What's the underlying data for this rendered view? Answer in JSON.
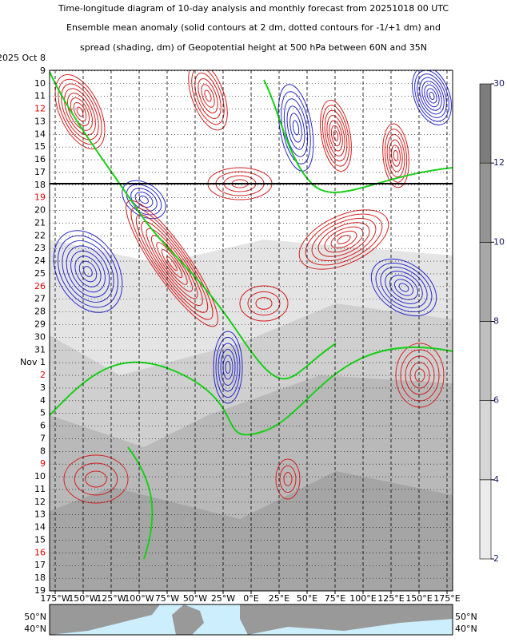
{
  "chart_data": {
    "type": "hovmoller",
    "title_lines": [
      "Time-longitude diagram of 10-day analysis and monthly forecast from 20251018 00 UTC",
      "Ensemble mean anomaly (solid contours at 2 dm, dotted contours for -1/+1 dm) and",
      "spread (shading, dm) of Geopotential height at 500 hPa between 60N and 35N"
    ],
    "categories": [
      "2025 Oct  8",
      "9",
      "10",
      "11",
      "12",
      "13",
      "14",
      "15",
      "16",
      "17",
      "18",
      "19",
      "20",
      "21",
      "22",
      "23",
      "24",
      "25",
      "26",
      "27",
      "28",
      "29",
      "30",
      "31",
      "Nov 1",
      "2",
      "3",
      "4",
      "5",
      "6",
      "7",
      "8",
      "9",
      "10",
      "11",
      "12",
      "13",
      "14",
      "15",
      "16",
      "17",
      "18",
      "19"
    ],
    "category_colors": [
      "#000000",
      "#000000",
      "#000000",
      "#000000",
      "#e00000",
      "#000000",
      "#000000",
      "#000000",
      "#000000",
      "#000000",
      "#000000",
      "#e00000",
      "#000000",
      "#000000",
      "#000000",
      "#000000",
      "#000000",
      "#000000",
      "#e00000",
      "#000000",
      "#000000",
      "#000000",
      "#000000",
      "#000000",
      "#000000",
      "#e00000",
      "#000000",
      "#000000",
      "#000000",
      "#000000",
      "#000000",
      "#000000",
      "#e00000",
      "#000000",
      "#000000",
      "#000000",
      "#000000",
      "#000000",
      "#000000",
      "#e00000",
      "#000000",
      "#000000",
      "#000000"
    ],
    "xlim": [
      -180,
      180
    ],
    "xticks": [
      {
        "value": -175,
        "label": "175°W"
      },
      {
        "value": -150,
        "label": "150°W"
      },
      {
        "value": -125,
        "label": "125°W"
      },
      {
        "value": -100,
        "label": "100°W"
      },
      {
        "value": -75,
        "label": "75°W"
      },
      {
        "value": -50,
        "label": "50°W"
      },
      {
        "value": -25,
        "label": "25°W"
      },
      {
        "value": 0,
        "label": "0°E"
      },
      {
        "value": 25,
        "label": "25°E"
      },
      {
        "value": 50,
        "label": "50°E"
      },
      {
        "value": 75,
        "label": "75°E"
      },
      {
        "value": 100,
        "label": "100°E"
      },
      {
        "value": 125,
        "label": "125°E"
      },
      {
        "value": 150,
        "label": "150°E"
      },
      {
        "value": 175,
        "label": "175°E"
      }
    ],
    "colorbar": {
      "levels": [
        2,
        4,
        6,
        8,
        10,
        12,
        30
      ],
      "colors": [
        "#ececec",
        "#d6d6d6",
        "#bfbfbf",
        "#a8a8a8",
        "#949494",
        "#7c7c7c"
      ]
    },
    "map": {
      "labels": [
        "50°N",
        "40°N"
      ]
    }
  }
}
